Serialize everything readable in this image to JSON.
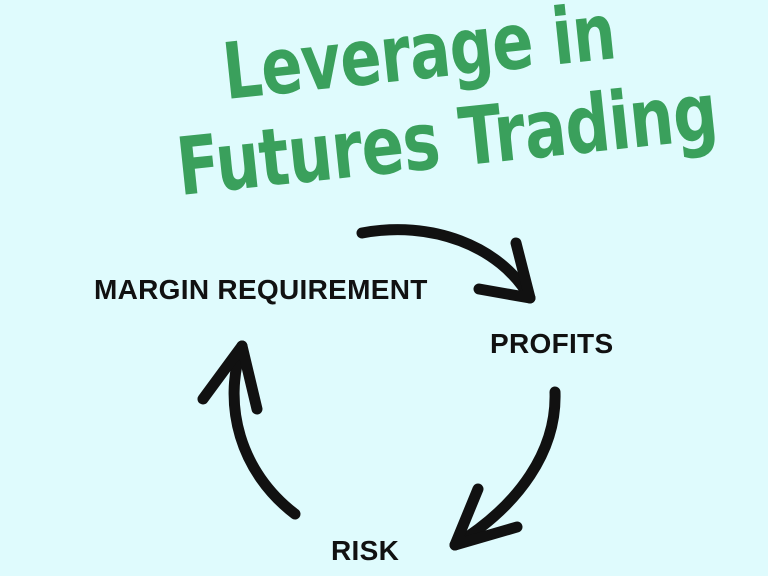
{
  "title": {
    "line1": "Leverage in",
    "line2": "Futures Trading"
  },
  "nodes": {
    "margin_requirement": "MARGIN REQUIREMENT",
    "profits": "PROFITS",
    "risk": "RISK"
  },
  "colors": {
    "background": "#dffbfd",
    "title": "#3aa05c",
    "text": "#111111",
    "arrow": "#111111"
  }
}
